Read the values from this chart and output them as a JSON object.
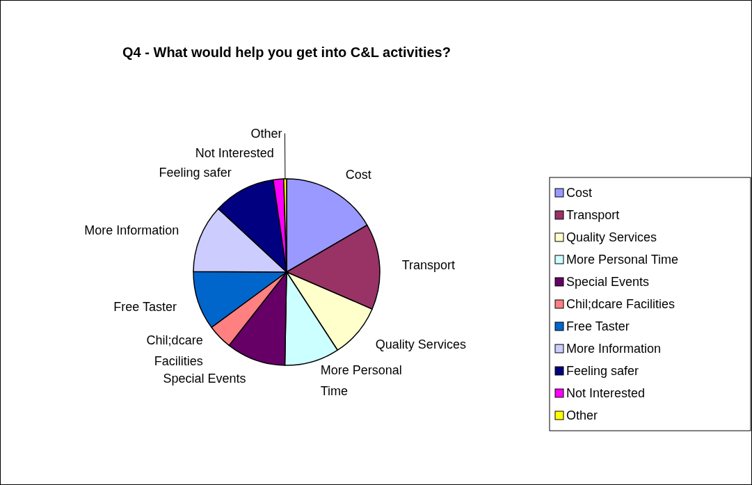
{
  "chart_data": {
    "type": "pie",
    "title": "Q4 - What would help you get into C&L activities?",
    "categories": [
      "Cost",
      "Transport",
      "Quality Services",
      "More Personal Time",
      "Special Events",
      "Chil;dcare Facilities",
      "Free Taster",
      "More Information",
      "Feeling safer",
      "Not Interested",
      "Other"
    ],
    "values": [
      16.6,
      14.9,
      9.3,
      9.5,
      10.3,
      4.3,
      10.2,
      11.8,
      10.8,
      1.8,
      0.5
    ],
    "colors": [
      "#9999ff",
      "#993366",
      "#ffffcc",
      "#ccffff",
      "#660066",
      "#ff8080",
      "#0066cc",
      "#ccccff",
      "#000080",
      "#ff00ff",
      "#ffff00"
    ],
    "legend": "right"
  }
}
